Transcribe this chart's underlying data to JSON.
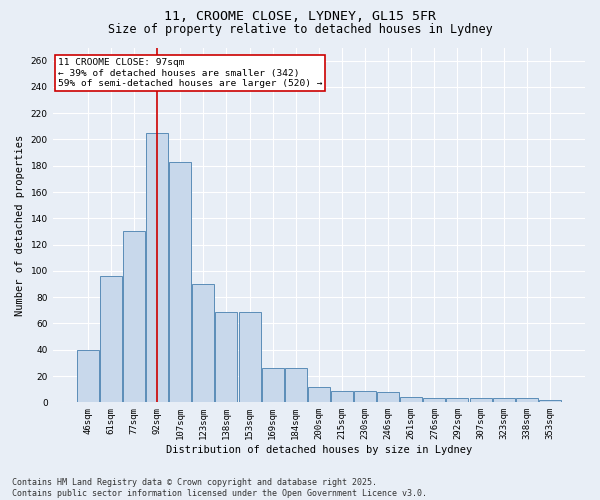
{
  "title_line1": "11, CROOME CLOSE, LYDNEY, GL15 5FR",
  "title_line2": "Size of property relative to detached houses in Lydney",
  "xlabel": "Distribution of detached houses by size in Lydney",
  "ylabel": "Number of detached properties",
  "categories": [
    "46sqm",
    "61sqm",
    "77sqm",
    "92sqm",
    "107sqm",
    "123sqm",
    "138sqm",
    "153sqm",
    "169sqm",
    "184sqm",
    "200sqm",
    "215sqm",
    "230sqm",
    "246sqm",
    "261sqm",
    "276sqm",
    "292sqm",
    "307sqm",
    "323sqm",
    "338sqm",
    "353sqm"
  ],
  "values": [
    40,
    96,
    130,
    205,
    183,
    90,
    69,
    69,
    26,
    26,
    12,
    9,
    9,
    8,
    4,
    3,
    3,
    3,
    3,
    3,
    2
  ],
  "bar_color": "#c8d8eb",
  "bar_edge_color": "#5b8db8",
  "background_color": "#e8eef6",
  "grid_color": "#ffffff",
  "vline_x": 3,
  "vline_color": "#cc0000",
  "annotation_text": "11 CROOME CLOSE: 97sqm\n← 39% of detached houses are smaller (342)\n59% of semi-detached houses are larger (520) →",
  "annotation_box_color": "#ffffff",
  "annotation_box_edge": "#cc0000",
  "ylim": [
    0,
    270
  ],
  "yticks": [
    0,
    20,
    40,
    60,
    80,
    100,
    120,
    140,
    160,
    180,
    200,
    220,
    240,
    260
  ],
  "footnote": "Contains HM Land Registry data © Crown copyright and database right 2025.\nContains public sector information licensed under the Open Government Licence v3.0.",
  "title_fontsize": 9.5,
  "subtitle_fontsize": 8.5,
  "label_fontsize": 7.5,
  "tick_fontsize": 6.5,
  "annotation_fontsize": 6.8,
  "footnote_fontsize": 6.0
}
